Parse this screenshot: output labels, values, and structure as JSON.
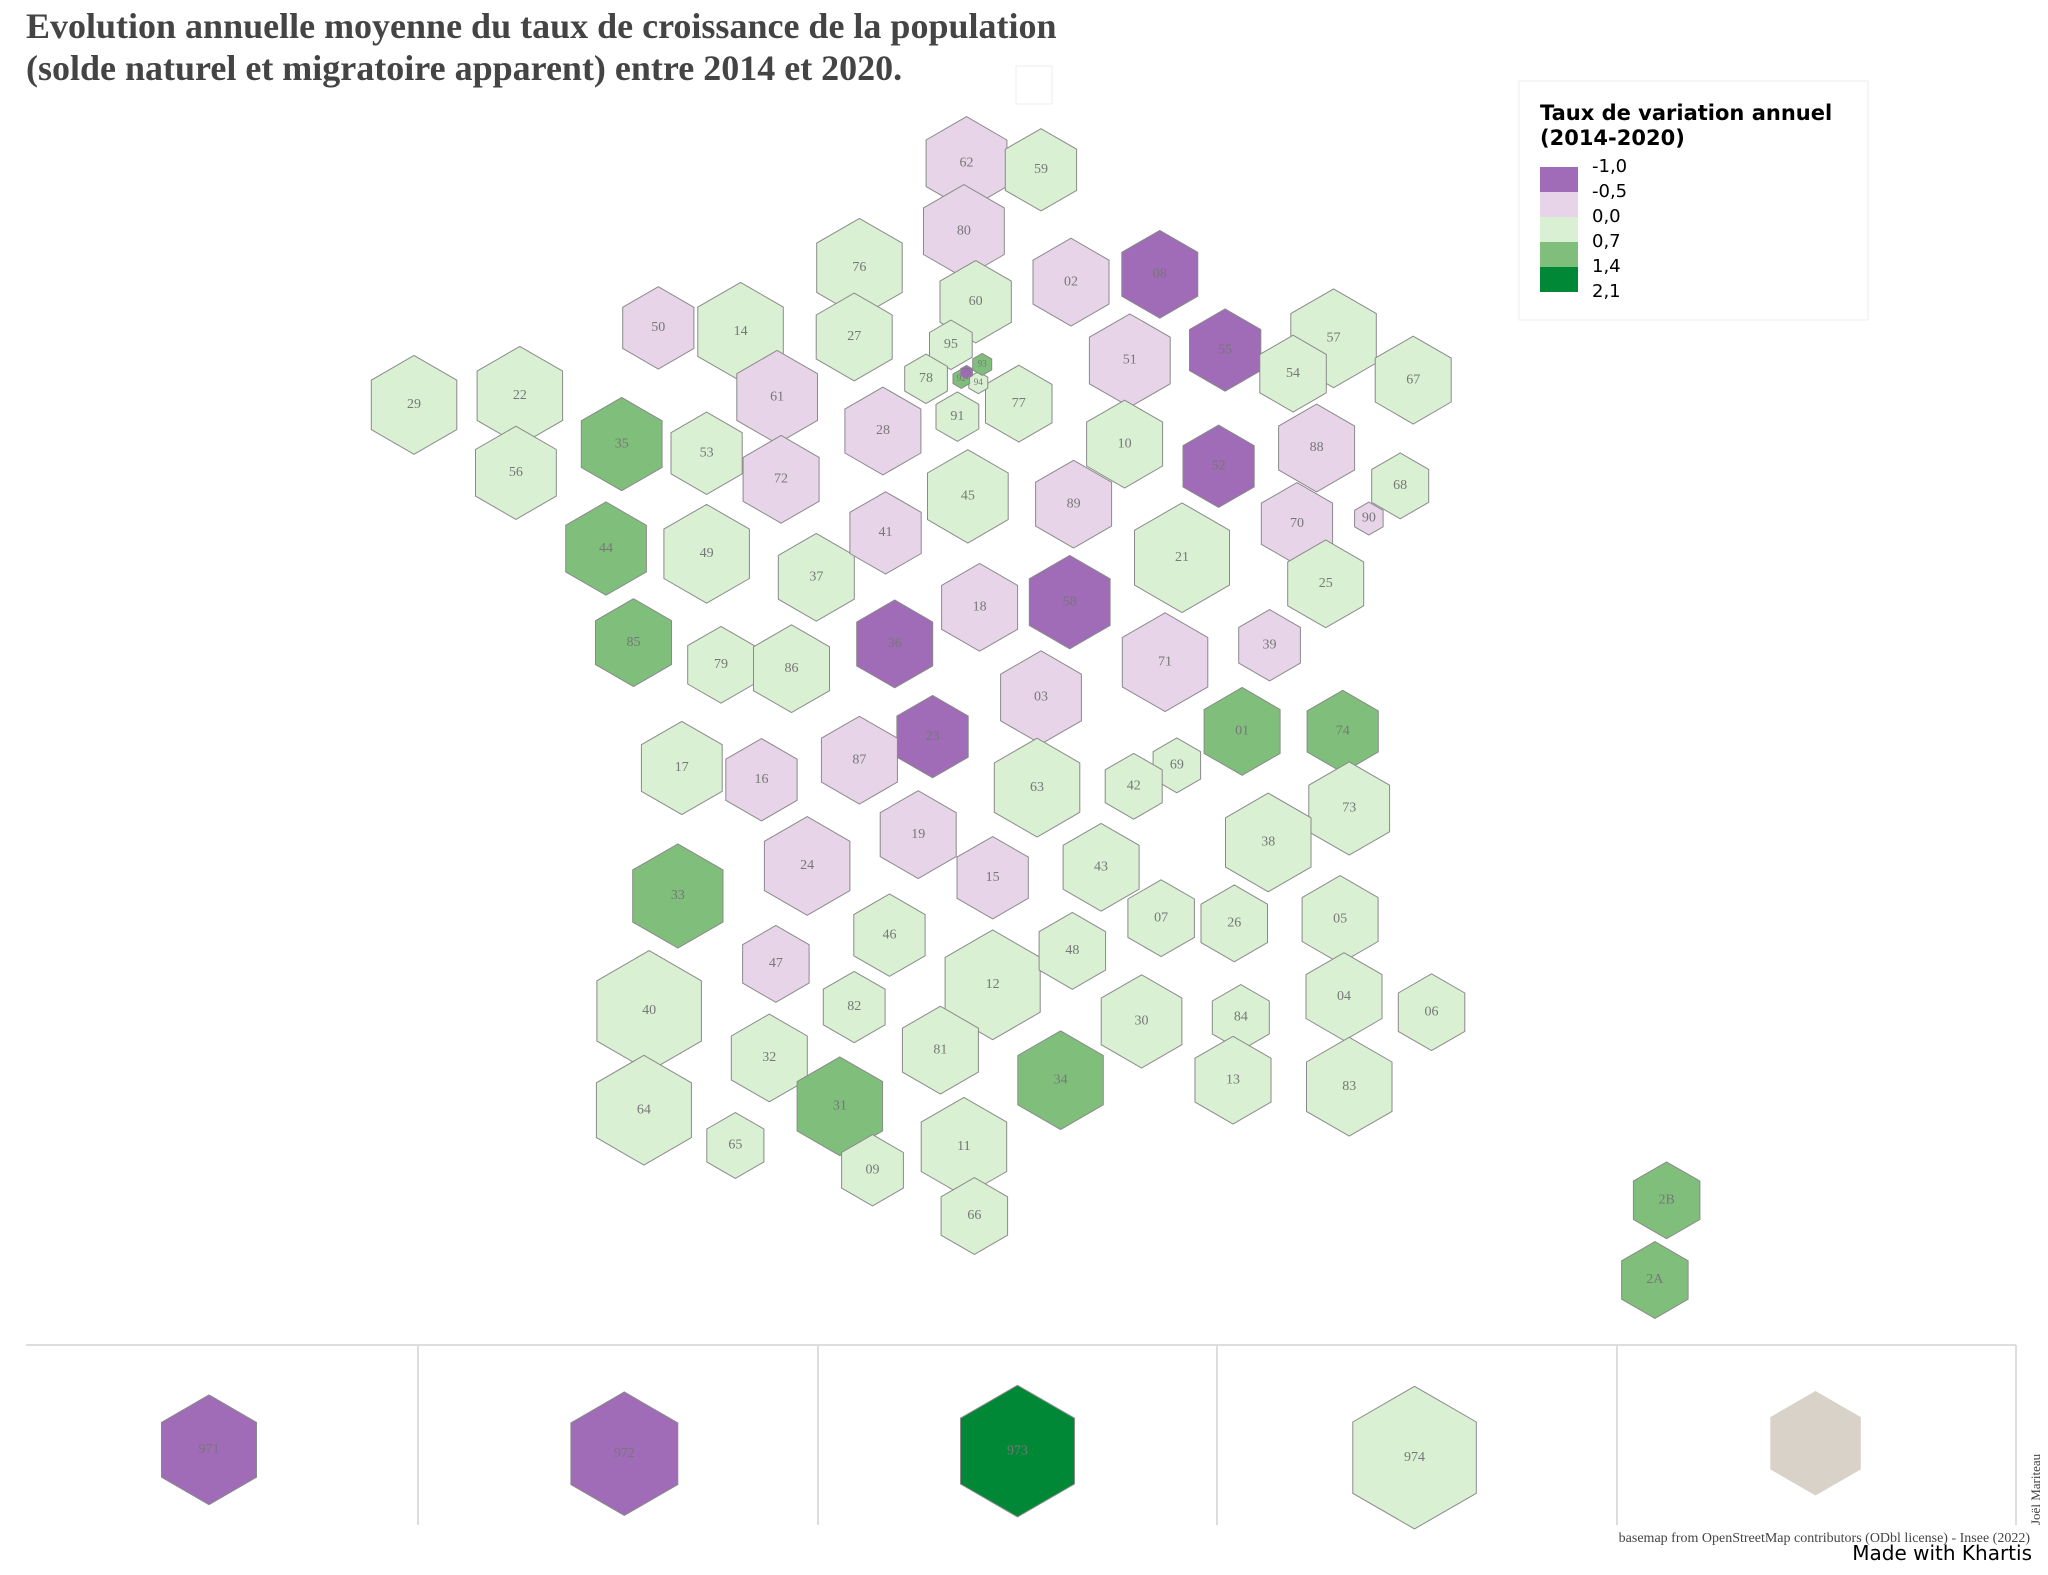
{
  "title": [
    "Evolution annuelle moyenne du taux de croissance de la population",
    "(solde naturel et migratoire apparent) entre 2014 et 2020."
  ],
  "legend": {
    "title": [
      "Taux de variation annuel",
      "(2014-2020)"
    ],
    "labels": [
      "-1,0",
      "-0,5",
      "0,0",
      "0,7",
      "1,4",
      "2,1"
    ],
    "colors": [
      "#a06bb7",
      "#e7d4e8",
      "#d9f0d3",
      "#7fbf7b",
      "#008837"
    ]
  },
  "departments": [
    {
      "code": "62",
      "color": "#e7d4e8"
    },
    {
      "code": "59",
      "color": "#d9f0d3"
    },
    {
      "code": "80",
      "color": "#e7d4e8"
    },
    {
      "code": "02",
      "color": "#e7d4e8"
    },
    {
      "code": "08",
      "color": "#a06bb7"
    },
    {
      "code": "76",
      "color": "#d9f0d3"
    },
    {
      "code": "60",
      "color": "#d9f0d3"
    },
    {
      "code": "14",
      "color": "#d9f0d3"
    },
    {
      "code": "27",
      "color": "#d9f0d3"
    },
    {
      "code": "50",
      "color": "#e7d4e8"
    },
    {
      "code": "95",
      "color": "#d9f0d3"
    },
    {
      "code": "55",
      "color": "#a06bb7"
    },
    {
      "code": "57",
      "color": "#d9f0d3"
    },
    {
      "code": "67",
      "color": "#d9f0d3"
    },
    {
      "code": "54",
      "color": "#d9f0d3"
    },
    {
      "code": "51",
      "color": "#e7d4e8"
    },
    {
      "code": "61",
      "color": "#e7d4e8"
    },
    {
      "code": "78",
      "color": "#d9f0d3"
    },
    {
      "code": "91",
      "color": "#d9f0d3"
    },
    {
      "code": "77",
      "color": "#d9f0d3"
    },
    {
      "code": "29",
      "color": "#d9f0d3"
    },
    {
      "code": "22",
      "color": "#d9f0d3"
    },
    {
      "code": "35",
      "color": "#7fbf7b"
    },
    {
      "code": "53",
      "color": "#d9f0d3"
    },
    {
      "code": "72",
      "color": "#e7d4e8"
    },
    {
      "code": "28",
      "color": "#e7d4e8"
    },
    {
      "code": "10",
      "color": "#d9f0d3"
    },
    {
      "code": "52",
      "color": "#a06bb7"
    },
    {
      "code": "88",
      "color": "#e7d4e8"
    },
    {
      "code": "68",
      "color": "#d9f0d3"
    },
    {
      "code": "56",
      "color": "#d9f0d3"
    },
    {
      "code": "45",
      "color": "#d9f0d3"
    },
    {
      "code": "89",
      "color": "#e7d4e8"
    },
    {
      "code": "70",
      "color": "#e7d4e8"
    },
    {
      "code": "90",
      "color": "#e7d4e8"
    },
    {
      "code": "44",
      "color": "#7fbf7b"
    },
    {
      "code": "49",
      "color": "#d9f0d3"
    },
    {
      "code": "37",
      "color": "#d9f0d3"
    },
    {
      "code": "41",
      "color": "#e7d4e8"
    },
    {
      "code": "21",
      "color": "#d9f0d3"
    },
    {
      "code": "25",
      "color": "#d9f0d3"
    },
    {
      "code": "18",
      "color": "#e7d4e8"
    },
    {
      "code": "58",
      "color": "#a06bb7"
    },
    {
      "code": "36",
      "color": "#a06bb7"
    },
    {
      "code": "39",
      "color": "#e7d4e8"
    },
    {
      "code": "85",
      "color": "#7fbf7b"
    },
    {
      "code": "79",
      "color": "#d9f0d3"
    },
    {
      "code": "86",
      "color": "#d9f0d3"
    },
    {
      "code": "71",
      "color": "#e7d4e8"
    },
    {
      "code": "03",
      "color": "#e7d4e8"
    },
    {
      "code": "01",
      "color": "#7fbf7b"
    },
    {
      "code": "74",
      "color": "#7fbf7b"
    },
    {
      "code": "23",
      "color": "#a06bb7"
    },
    {
      "code": "17",
      "color": "#d9f0d3"
    },
    {
      "code": "16",
      "color": "#e7d4e8"
    },
    {
      "code": "87",
      "color": "#e7d4e8"
    },
    {
      "code": "69",
      "color": "#d9f0d3"
    },
    {
      "code": "42",
      "color": "#d9f0d3"
    },
    {
      "code": "63",
      "color": "#d9f0d3"
    },
    {
      "code": "73",
      "color": "#d9f0d3"
    },
    {
      "code": "38",
      "color": "#d9f0d3"
    },
    {
      "code": "19",
      "color": "#e7d4e8"
    },
    {
      "code": "24",
      "color": "#e7d4e8"
    },
    {
      "code": "15",
      "color": "#e7d4e8"
    },
    {
      "code": "43",
      "color": "#d9f0d3"
    },
    {
      "code": "33",
      "color": "#7fbf7b"
    },
    {
      "code": "07",
      "color": "#d9f0d3"
    },
    {
      "code": "26",
      "color": "#d9f0d3"
    },
    {
      "code": "05",
      "color": "#d9f0d3"
    },
    {
      "code": "46",
      "color": "#d9f0d3"
    },
    {
      "code": "12",
      "color": "#d9f0d3"
    },
    {
      "code": "48",
      "color": "#d9f0d3"
    },
    {
      "code": "47",
      "color": "#e7d4e8"
    },
    {
      "code": "40",
      "color": "#d9f0d3"
    },
    {
      "code": "82",
      "color": "#d9f0d3"
    },
    {
      "code": "30",
      "color": "#d9f0d3"
    },
    {
      "code": "84",
      "color": "#d9f0d3"
    },
    {
      "code": "04",
      "color": "#d9f0d3"
    },
    {
      "code": "06",
      "color": "#d9f0d3"
    },
    {
      "code": "32",
      "color": "#d9f0d3"
    },
    {
      "code": "81",
      "color": "#d9f0d3"
    },
    {
      "code": "34",
      "color": "#7fbf7b"
    },
    {
      "code": "13",
      "color": "#d9f0d3"
    },
    {
      "code": "83",
      "color": "#d9f0d3"
    },
    {
      "code": "64",
      "color": "#d9f0d3"
    },
    {
      "code": "31",
      "color": "#7fbf7b"
    },
    {
      "code": "65",
      "color": "#d9f0d3"
    },
    {
      "code": "11",
      "color": "#d9f0d3"
    },
    {
      "code": "09",
      "color": "#d9f0d3"
    },
    {
      "code": "66",
      "color": "#d9f0d3"
    },
    {
      "code": "2B",
      "color": "#7fbf7b"
    },
    {
      "code": "2A",
      "color": "#7fbf7b"
    },
    {
      "code": "94",
      "color": "#d9f0d3"
    },
    {
      "code": "93",
      "color": "#7fbf7b"
    },
    {
      "code": "92",
      "color": "#7fbf7b"
    },
    {
      "code": "75",
      "color": "#a06bb7"
    },
    {
      "code": "971",
      "color": "#a06bb7"
    },
    {
      "code": "972",
      "color": "#a06bb7"
    },
    {
      "code": "973",
      "color": "#008837"
    },
    {
      "code": "974",
      "color": "#d9f0d3"
    }
  ],
  "mayotte": {
    "color": "#d8d2c8"
  },
  "credits": {
    "source": "basemap from OpenStreetMap contributors (ODbl license) - Insee (2022)",
    "tool": "Made with Khartis",
    "author": "Joël Mariteau"
  }
}
